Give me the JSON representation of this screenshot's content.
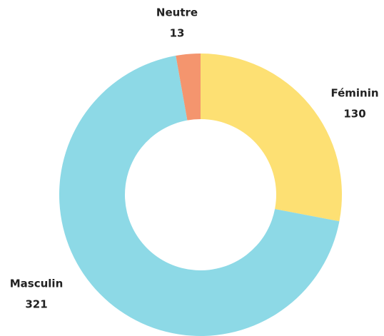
{
  "chart_data": {
    "type": "donut",
    "categories": [
      "Féminin",
      "Masculin",
      "Neutre"
    ],
    "values": [
      130,
      321,
      13
    ],
    "colors": [
      "#fde073",
      "#8dd9e6",
      "#f4956e"
    ]
  }
}
